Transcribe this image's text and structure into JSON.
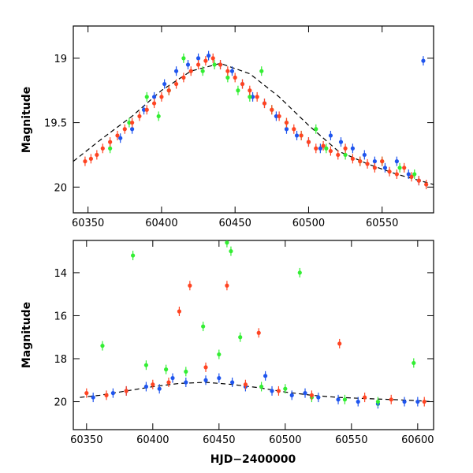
{
  "colors": {
    "blue": "#1f55ee",
    "green": "#33ee33",
    "red": "#ff4422",
    "trend": "#000000"
  },
  "chart_data": [
    {
      "type": "scatter",
      "title": "",
      "xlabel": "",
      "ylabel": "Magnitude",
      "xlim": [
        60340,
        60585
      ],
      "ylim": [
        20.2,
        18.75
      ],
      "y_inverted": true,
      "xticks": [
        60350,
        60400,
        60450,
        60500,
        60550
      ],
      "yticks": [
        19,
        19.5,
        20
      ],
      "ytick_labels": [
        "19",
        "19.5",
        "20"
      ],
      "series": [
        {
          "color": "blue",
          "points": [
            [
              60372,
              19.62
            ],
            [
              60380,
              19.55
            ],
            [
              60388,
              19.4
            ],
            [
              60395,
              19.3
            ],
            [
              60402,
              19.2
            ],
            [
              60410,
              19.1
            ],
            [
              60418,
              19.05
            ],
            [
              60425,
              19.0
            ],
            [
              60432,
              18.98
            ],
            [
              60440,
              19.05
            ],
            [
              60448,
              19.1
            ],
            [
              60455,
              19.2
            ],
            [
              60462,
              19.3
            ],
            [
              60470,
              19.35
            ],
            [
              60478,
              19.45
            ],
            [
              60485,
              19.55
            ],
            [
              60492,
              19.6
            ],
            [
              60500,
              19.65
            ],
            [
              60508,
              19.7
            ],
            [
              60515,
              19.6
            ],
            [
              60522,
              19.65
            ],
            [
              60530,
              19.7
            ],
            [
              60538,
              19.75
            ],
            [
              60545,
              19.8
            ],
            [
              60552,
              19.85
            ],
            [
              60560,
              19.8
            ],
            [
              60568,
              19.9
            ],
            [
              60575,
              19.95
            ],
            [
              60578,
              19.02
            ]
          ]
        },
        {
          "color": "green",
          "points": [
            [
              60365,
              19.7
            ],
            [
              60378,
              19.5
            ],
            [
              60390,
              19.3
            ],
            [
              60398,
              19.45
            ],
            [
              60405,
              19.25
            ],
            [
              60415,
              19.0
            ],
            [
              60428,
              19.1
            ],
            [
              60436,
              19.05
            ],
            [
              60445,
              19.15
            ],
            [
              60452,
              19.25
            ],
            [
              60460,
              19.3
            ],
            [
              60468,
              19.1
            ],
            [
              60475,
              19.4
            ],
            [
              60485,
              19.5
            ],
            [
              60495,
              19.6
            ],
            [
              60505,
              19.55
            ],
            [
              60512,
              19.7
            ],
            [
              60525,
              19.75
            ],
            [
              60535,
              19.8
            ],
            [
              60550,
              19.8
            ],
            [
              60562,
              19.85
            ],
            [
              60572,
              19.9
            ]
          ]
        },
        {
          "color": "red",
          "points": [
            [
              60348,
              19.8
            ],
            [
              60352,
              19.78
            ],
            [
              60356,
              19.75
            ],
            [
              60360,
              19.7
            ],
            [
              60365,
              19.65
            ],
            [
              60370,
              19.6
            ],
            [
              60375,
              19.55
            ],
            [
              60380,
              19.5
            ],
            [
              60385,
              19.45
            ],
            [
              60390,
              19.4
            ],
            [
              60395,
              19.35
            ],
            [
              60400,
              19.3
            ],
            [
              60405,
              19.25
            ],
            [
              60410,
              19.2
            ],
            [
              60415,
              19.15
            ],
            [
              60420,
              19.1
            ],
            [
              60425,
              19.05
            ],
            [
              60430,
              19.02
            ],
            [
              60435,
              19.0
            ],
            [
              60440,
              19.05
            ],
            [
              60445,
              19.1
            ],
            [
              60450,
              19.15
            ],
            [
              60455,
              19.2
            ],
            [
              60460,
              19.25
            ],
            [
              60465,
              19.3
            ],
            [
              60470,
              19.35
            ],
            [
              60475,
              19.4
            ],
            [
              60480,
              19.45
            ],
            [
              60485,
              19.5
            ],
            [
              60490,
              19.55
            ],
            [
              60495,
              19.6
            ],
            [
              60500,
              19.65
            ],
            [
              60505,
              19.7
            ],
            [
              60510,
              19.68
            ],
            [
              60515,
              19.72
            ],
            [
              60520,
              19.75
            ],
            [
              60525,
              19.7
            ],
            [
              60530,
              19.78
            ],
            [
              60535,
              19.8
            ],
            [
              60540,
              19.82
            ],
            [
              60545,
              19.85
            ],
            [
              60550,
              19.8
            ],
            [
              60555,
              19.88
            ],
            [
              60560,
              19.9
            ],
            [
              60565,
              19.85
            ],
            [
              60570,
              19.92
            ],
            [
              60575,
              19.95
            ],
            [
              60580,
              19.98
            ]
          ]
        }
      ],
      "trend_x": [
        60340,
        60360,
        60380,
        60400,
        60420,
        60440,
        60460,
        60480,
        60500,
        60520,
        60540,
        60560,
        60585
      ],
      "trend_y": [
        19.8,
        19.62,
        19.45,
        19.25,
        19.1,
        19.04,
        19.12,
        19.3,
        19.52,
        19.72,
        19.82,
        19.9,
        19.98
      ]
    },
    {
      "type": "scatter",
      "title": "",
      "xlabel": "HJD−2400000",
      "ylabel": "Magnitude",
      "xlim": [
        60340,
        60612
      ],
      "ylim": [
        21.3,
        12.5
      ],
      "y_inverted": true,
      "xticks": [
        60350,
        60400,
        60450,
        60500,
        60550,
        60600
      ],
      "yticks": [
        14,
        16,
        18,
        20
      ],
      "ytick_labels": [
        "14",
        "16",
        "18",
        "20"
      ],
      "series": [
        {
          "color": "blue",
          "points": [
            [
              60355,
              19.8
            ],
            [
              60370,
              19.6
            ],
            [
              60380,
              19.5
            ],
            [
              60395,
              19.3
            ],
            [
              60405,
              19.4
            ],
            [
              60415,
              18.9
            ],
            [
              60425,
              19.1
            ],
            [
              60440,
              19.0
            ],
            [
              60450,
              18.9
            ],
            [
              60460,
              19.1
            ],
            [
              60470,
              19.3
            ],
            [
              60485,
              18.8
            ],
            [
              60490,
              19.5
            ],
            [
              60505,
              19.7
            ],
            [
              60515,
              19.6
            ],
            [
              60525,
              19.8
            ],
            [
              60540,
              19.9
            ],
            [
              60555,
              20.0
            ],
            [
              60570,
              20.1
            ],
            [
              60590,
              20.0
            ],
            [
              60600,
              20.0
            ]
          ]
        },
        {
          "color": "green",
          "points": [
            [
              60362,
              17.4
            ],
            [
              60385,
              13.2
            ],
            [
              60395,
              18.3
            ],
            [
              60410,
              18.5
            ],
            [
              60425,
              18.6
            ],
            [
              60438,
              16.5
            ],
            [
              60450,
              17.8
            ],
            [
              60456,
              12.6
            ],
            [
              60459,
              13.0
            ],
            [
              60466,
              17.0
            ],
            [
              60482,
              19.3
            ],
            [
              60500,
              19.4
            ],
            [
              60511,
              14.0
            ],
            [
              60520,
              19.8
            ],
            [
              60545,
              19.9
            ],
            [
              60570,
              20.0
            ],
            [
              60597,
              18.2
            ]
          ]
        },
        {
          "color": "red",
          "points": [
            [
              60350,
              19.6
            ],
            [
              60365,
              19.7
            ],
            [
              60380,
              19.5
            ],
            [
              60400,
              19.2
            ],
            [
              60412,
              19.1
            ],
            [
              60420,
              15.8
            ],
            [
              60428,
              14.6
            ],
            [
              60440,
              18.4
            ],
            [
              60456,
              14.6
            ],
            [
              60470,
              19.2
            ],
            [
              60480,
              16.8
            ],
            [
              60495,
              19.5
            ],
            [
              60520,
              19.7
            ],
            [
              60541,
              17.3
            ],
            [
              60560,
              19.8
            ],
            [
              60580,
              19.9
            ],
            [
              60605,
              20.0
            ]
          ]
        }
      ],
      "trend_x": [
        60345,
        60360,
        60380,
        60400,
        60420,
        60440,
        60460,
        60480,
        60500,
        60520,
        60540,
        60560,
        60580,
        60600,
        60610
      ],
      "trend_y": [
        19.8,
        19.7,
        19.5,
        19.3,
        19.15,
        19.1,
        19.2,
        19.35,
        19.55,
        19.7,
        19.8,
        19.85,
        19.9,
        19.95,
        20.0
      ]
    }
  ]
}
